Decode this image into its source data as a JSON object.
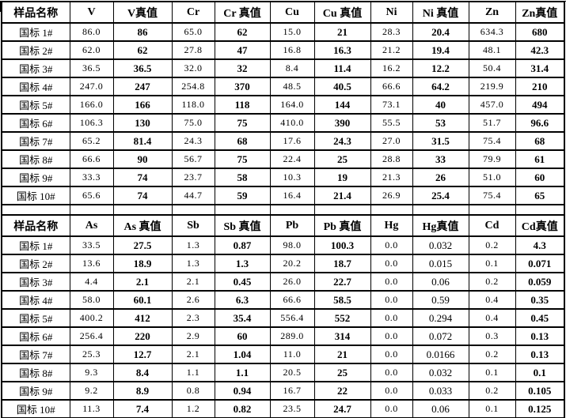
{
  "page": {
    "background": "#ffffff",
    "grid_color": "#000000",
    "text_color": "#000000"
  },
  "tables": [
    {
      "columns": [
        "样品名称",
        "V",
        "V真值",
        "Cr",
        "Cr 真值",
        "Cu",
        "Cu 真值",
        "Ni",
        "Ni 真值",
        "Zn",
        "Zn真值"
      ],
      "rows": [
        [
          "国标 1#",
          "86.0",
          "86",
          "65.0",
          "62",
          "15.0",
          "21",
          "28.3",
          "20.4",
          "634.3",
          "680"
        ],
        [
          "国标 2#",
          "62.0",
          "62",
          "27.8",
          "47",
          "16.8",
          "16.3",
          "21.2",
          "19.4",
          "48.1",
          "42.3"
        ],
        [
          "国标 3#",
          "36.5",
          "36.5",
          "32.0",
          "32",
          "8.4",
          "11.4",
          "16.2",
          "12.2",
          "50.4",
          "31.4"
        ],
        [
          "国标 4#",
          "247.0",
          "247",
          "254.8",
          "370",
          "48.5",
          "40.5",
          "66.6",
          "64.2",
          "219.9",
          "210"
        ],
        [
          "国标 5#",
          "166.0",
          "166",
          "118.0",
          "118",
          "164.0",
          "144",
          "73.1",
          "40",
          "457.0",
          "494"
        ],
        [
          "国标 6#",
          "106.3",
          "130",
          "75.0",
          "75",
          "410.0",
          "390",
          "55.5",
          "53",
          "51.7",
          "96.6"
        ],
        [
          "国标 7#",
          "65.2",
          "81.4",
          "24.3",
          "68",
          "17.6",
          "24.3",
          "27.0",
          "31.5",
          "75.4",
          "68"
        ],
        [
          "国标 8#",
          "66.6",
          "90",
          "56.7",
          "75",
          "22.4",
          "25",
          "28.8",
          "33",
          "79.9",
          "61"
        ],
        [
          "国标 9#",
          "33.3",
          "74",
          "23.7",
          "58",
          "10.3",
          "19",
          "21.3",
          "26",
          "51.0",
          "60"
        ],
        [
          "国标 10#",
          "65.6",
          "74",
          "44.7",
          "59",
          "16.4",
          "21.4",
          "26.9",
          "25.4",
          "75.4",
          "65"
        ]
      ]
    },
    {
      "columns": [
        "样品名称",
        "As",
        "As 真值",
        "Sb",
        "Sb 真值",
        "Pb",
        "Pb 真值",
        "Hg",
        "Hg真值",
        "Cd",
        "Cd真值"
      ],
      "rows": [
        [
          "国标 1#",
          "33.5",
          "27.5",
          "1.3",
          "0.87",
          "98.0",
          "100.3",
          "0.0",
          "0.032",
          "0.2",
          "4.3"
        ],
        [
          "国标 2#",
          "13.6",
          "18.9",
          "1.3",
          "1.3",
          "20.2",
          "18.7",
          "0.0",
          "0.015",
          "0.1",
          "0.071"
        ],
        [
          "国标 3#",
          "4.4",
          "2.1",
          "2.1",
          "0.45",
          "26.0",
          "22.7",
          "0.0",
          "0.06",
          "0.2",
          "0.059"
        ],
        [
          "国标 4#",
          "58.0",
          "60.1",
          "2.6",
          "6.3",
          "66.6",
          "58.5",
          "0.0",
          "0.59",
          "0.4",
          "0.35"
        ],
        [
          "国标 5#",
          "400.2",
          "412",
          "2.3",
          "35.4",
          "556.4",
          "552",
          "0.0",
          "0.294",
          "0.4",
          "0.45"
        ],
        [
          "国标 6#",
          "256.4",
          "220",
          "2.9",
          "60",
          "289.0",
          "314",
          "0.0",
          "0.072",
          "0.3",
          "0.13"
        ],
        [
          "国标 7#",
          "25.3",
          "12.7",
          "2.1",
          "1.04",
          "11.0",
          "21",
          "0.0",
          "0.0166",
          "0.2",
          "0.13"
        ],
        [
          "国标 8#",
          "9.3",
          "8.4",
          "1.1",
          "1.1",
          "20.5",
          "25",
          "0.0",
          "0.032",
          "0.1",
          "0.1"
        ],
        [
          "国标 9#",
          "9.2",
          "8.9",
          "0.8",
          "0.94",
          "16.7",
          "22",
          "0.0",
          "0.033",
          "0.2",
          "0.105"
        ],
        [
          "国标 10#",
          "11.3",
          "7.4",
          "1.2",
          "0.82",
          "23.5",
          "24.7",
          "0.0",
          "0.06",
          "0.1",
          "0.125"
        ]
      ]
    }
  ]
}
